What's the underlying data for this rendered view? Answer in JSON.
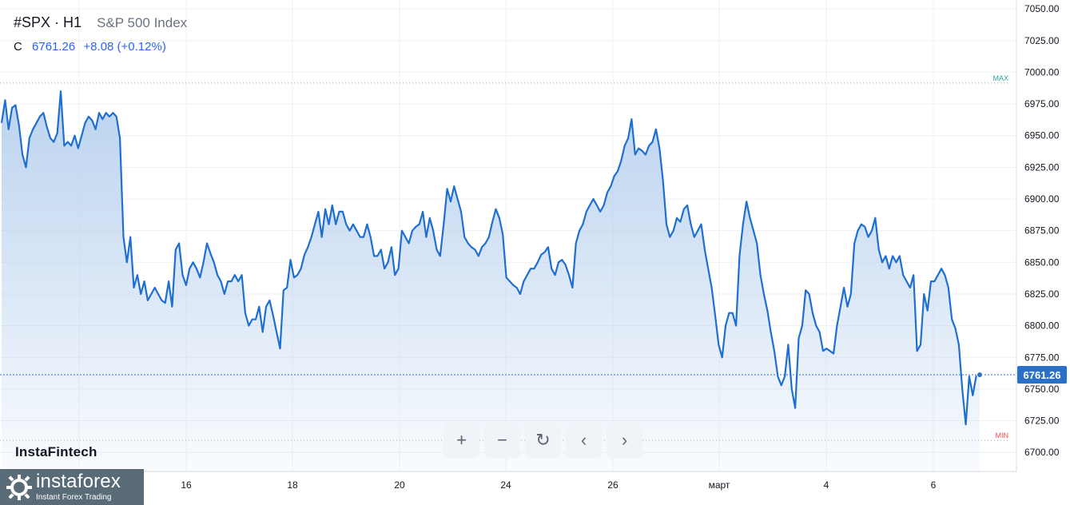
{
  "header": {
    "symbol": "#SPX · H1",
    "description": "S&P 500 Index",
    "close_label": "C",
    "close_value": "6761.26",
    "change": "+8.08 (+0.12%)"
  },
  "watermark": "InstaFintech",
  "brand": {
    "name": "instaforex",
    "tagline": "Instant Forex Trading"
  },
  "toolbar": {
    "zoom_in": "+",
    "zoom_out": "−",
    "reset": "↻",
    "back": "‹",
    "forward": "›"
  },
  "colors": {
    "line": "#1f6fd1",
    "fill_top": "#b7d0ee",
    "marker": "#2970c7",
    "max_label": "#26a69a",
    "min_label": "#ef5350"
  },
  "chart_data": {
    "type": "area",
    "ylim": [
      6685,
      7057
    ],
    "y_ticks": [
      "7050.00",
      "7025.00",
      "7000.00",
      "6975.00",
      "6950.00",
      "6925.00",
      "6900.00",
      "6875.00",
      "6850.00",
      "6825.00",
      "6800.00",
      "6775.00",
      "6750.00",
      "6725.00",
      "6700.00"
    ],
    "x_ticks": [
      "16",
      "18",
      "20",
      "24",
      "26",
      "март",
      "4",
      "6"
    ],
    "max_line": {
      "label": "MAX",
      "value": 6991.5
    },
    "min_line": {
      "label": "MIN",
      "value": 6709.5
    },
    "last_price": {
      "label": "6761.26",
      "value": 6761.26
    },
    "values": [
      6960,
      6978,
      6955,
      6972,
      6974,
      6958,
      6935,
      6925,
      6948,
      6955,
      6960,
      6965,
      6968,
      6957,
      6948,
      6945,
      6952,
      6985,
      6942,
      6945,
      6942,
      6950,
      6940,
      6950,
      6960,
      6965,
      6962,
      6955,
      6968,
      6963,
      6968,
      6965,
      6968,
      6965,
      6948,
      6870,
      6850,
      6870,
      6830,
      6840,
      6825,
      6835,
      6820,
      6825,
      6830,
      6825,
      6820,
      6818,
      6835,
      6815,
      6860,
      6865,
      6840,
      6832,
      6845,
      6850,
      6845,
      6838,
      6850,
      6865,
      6857,
      6850,
      6840,
      6835,
      6825,
      6835,
      6835,
      6840,
      6835,
      6840,
      6810,
      6800,
      6805,
      6805,
      6815,
      6795,
      6815,
      6820,
      6808,
      6795,
      6782,
      6828,
      6830,
      6852,
      6838,
      6840,
      6845,
      6856,
      6862,
      6870,
      6880,
      6890,
      6870,
      6892,
      6880,
      6895,
      6880,
      6890,
      6890,
      6880,
      6875,
      6880,
      6875,
      6870,
      6870,
      6880,
      6870,
      6855,
      6855,
      6860,
      6845,
      6850,
      6862,
      6840,
      6845,
      6875,
      6870,
      6865,
      6875,
      6878,
      6880,
      6890,
      6870,
      6885,
      6875,
      6860,
      6855,
      6880,
      6908,
      6898,
      6910,
      6900,
      6890,
      6870,
      6865,
      6862,
      6860,
      6855,
      6862,
      6865,
      6870,
      6882,
      6892,
      6885,
      6872,
      6838,
      6835,
      6832,
      6830,
      6825,
      6835,
      6840,
      6845,
      6845,
      6850,
      6856,
      6858,
      6862,
      6845,
      6840,
      6850,
      6852,
      6848,
      6840,
      6830,
      6865,
      6875,
      6880,
      6890,
      6895,
      6900,
      6895,
      6890,
      6895,
      6905,
      6910,
      6918,
      6922,
      6930,
      6942,
      6948,
      6963,
      6935,
      6940,
      6938,
      6935,
      6942,
      6945,
      6955,
      6940,
      6915,
      6880,
      6870,
      6875,
      6885,
      6882,
      6892,
      6895,
      6880,
      6870,
      6875,
      6880,
      6860,
      6845,
      6830,
      6808,
      6785,
      6775,
      6800,
      6810,
      6810,
      6800,
      6855,
      6880,
      6898,
      6885,
      6875,
      6865,
      6840,
      6825,
      6812,
      6795,
      6780,
      6760,
      6753,
      6760,
      6785,
      6750,
      6735,
      6790,
      6800,
      6828,
      6825,
      6810,
      6800,
      6795,
      6780,
      6782,
      6780,
      6778,
      6800,
      6815,
      6830,
      6815,
      6825,
      6865,
      6875,
      6880,
      6878,
      6870,
      6875,
      6885,
      6860,
      6850,
      6855,
      6845,
      6855,
      6850,
      6855,
      6840,
      6835,
      6830,
      6840,
      6780,
      6785,
      6825,
      6812,
      6835,
      6835,
      6840,
      6845,
      6840,
      6830,
      6805,
      6798,
      6785,
      6750,
      6722,
      6760,
      6745,
      6760,
      6761.26
    ]
  }
}
